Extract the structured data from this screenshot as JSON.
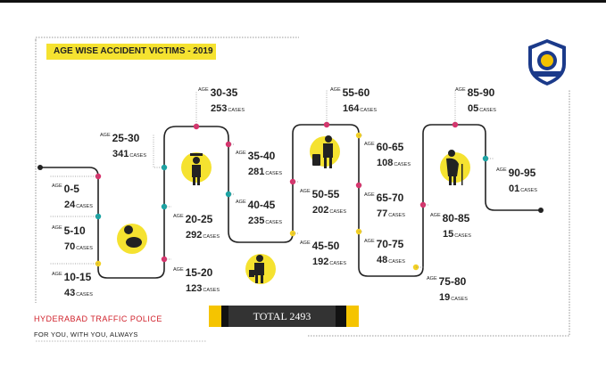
{
  "title": "AGE WISE ACCIDENT VICTIMS - 2019",
  "logo": {
    "icon": "hyderabad-traffic-police-emblem",
    "text": "FOR YOU WITH YOU ALWAYS · TRAFFIC POLICE"
  },
  "age_prefix": "AGE",
  "cases_suffix": "CASES",
  "groups": [
    {
      "range": "0-5",
      "cases": "24"
    },
    {
      "range": "5-10",
      "cases": "70"
    },
    {
      "range": "10-15",
      "cases": "43"
    },
    {
      "range": "15-20",
      "cases": "123"
    },
    {
      "range": "20-25",
      "cases": "292"
    },
    {
      "range": "25-30",
      "cases": "341"
    },
    {
      "range": "30-35",
      "cases": "253"
    },
    {
      "range": "35-40",
      "cases": "281"
    },
    {
      "range": "40-45",
      "cases": "235"
    },
    {
      "range": "45-50",
      "cases": "192"
    },
    {
      "range": "50-55",
      "cases": "202"
    },
    {
      "range": "55-60",
      "cases": "164"
    },
    {
      "range": "60-65",
      "cases": "108"
    },
    {
      "range": "65-70",
      "cases": "77"
    },
    {
      "range": "70-75",
      "cases": "48"
    },
    {
      "range": "75-80",
      "cases": "19"
    },
    {
      "range": "80-85",
      "cases": "15"
    },
    {
      "range": "85-90",
      "cases": "05"
    },
    {
      "range": "90-95",
      "cases": "01"
    }
  ],
  "total_label": "TOTAL 2493",
  "footer": {
    "org": "HYDERABAD TRAFFIC POLICE",
    "tagline": "FOR YOU, WITH YOU, ALWAYS"
  },
  "colors": {
    "accent_yellow": "#f5e230",
    "dot_pink": "#d6336c",
    "dot_teal": "#1aa3a3",
    "dot_yellow": "#f2d024",
    "path": "#222222"
  }
}
